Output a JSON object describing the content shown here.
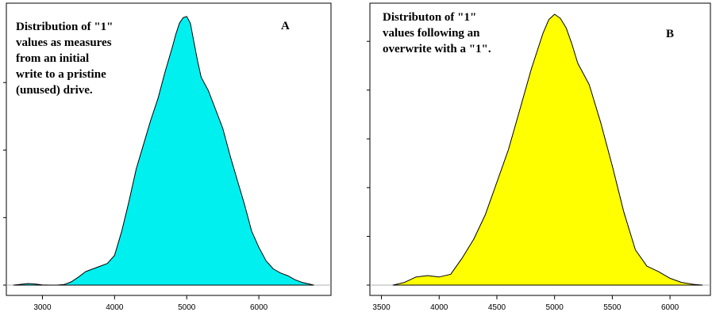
{
  "chart_data": [
    {
      "type": "area",
      "panel_letter": "A",
      "annotation_lines": [
        "Distribution of \"1\"",
        "values as measures",
        "from an initial",
        "write to a pristine",
        "(unused) drive."
      ],
      "fill_color": "#00f0f0",
      "xlim": [
        2500,
        7000
      ],
      "ylim": [
        0,
        1.0
      ],
      "x_ticks": [
        3000,
        4000,
        5000,
        6000
      ],
      "x_tick_labels": [
        "3000",
        "4000",
        "5000",
        "6000"
      ],
      "y_ticks": [
        0,
        0.25,
        0.5,
        0.75
      ],
      "series": [
        {
          "x": [
            2600,
            2700,
            2800,
            2900,
            3000,
            3100,
            3200,
            3300,
            3400,
            3500,
            3600,
            3700,
            3800,
            3900,
            4000,
            4100,
            4200,
            4300,
            4400,
            4500,
            4600,
            4700,
            4800,
            4850,
            4900,
            4950,
            5000,
            5050,
            5100,
            5150,
            5200,
            5300,
            5400,
            5500,
            5600,
            5700,
            5800,
            5900,
            6000,
            6100,
            6200,
            6300,
            6400,
            6500,
            6600,
            6700,
            6760
          ],
          "y": [
            0.0,
            0.003,
            0.006,
            0.004,
            0.001,
            0.0,
            0.0,
            0.002,
            0.012,
            0.03,
            0.05,
            0.06,
            0.07,
            0.08,
            0.11,
            0.2,
            0.31,
            0.43,
            0.52,
            0.61,
            0.69,
            0.79,
            0.88,
            0.93,
            0.97,
            0.99,
            0.995,
            0.97,
            0.9,
            0.83,
            0.77,
            0.72,
            0.65,
            0.58,
            0.48,
            0.39,
            0.3,
            0.2,
            0.14,
            0.09,
            0.06,
            0.045,
            0.035,
            0.02,
            0.01,
            0.004,
            0.0
          ]
        }
      ]
    },
    {
      "type": "area",
      "panel_letter": "B",
      "annotation_lines": [
        "Distributon of \"1\"",
        "values following an",
        "overwrite with a \"1\"."
      ],
      "fill_color": "#ffff00",
      "xlim": [
        3400,
        6350
      ],
      "ylim": [
        0,
        1.0
      ],
      "x_ticks": [
        3500,
        4000,
        4500,
        5000,
        5500,
        6000
      ],
      "x_tick_labels": [
        "3500",
        "4000",
        "4500",
        "5000",
        "5500",
        "6000"
      ],
      "y_ticks": [
        0,
        0.18,
        0.36,
        0.54,
        0.72,
        0.9
      ],
      "series": [
        {
          "x": [
            3600,
            3700,
            3800,
            3900,
            4000,
            4100,
            4200,
            4300,
            4400,
            4500,
            4600,
            4700,
            4800,
            4900,
            4950,
            5000,
            5050,
            5100,
            5150,
            5200,
            5300,
            5400,
            5500,
            5600,
            5700,
            5800,
            5900,
            6000,
            6100,
            6200,
            6280
          ],
          "y": [
            0.0,
            0.01,
            0.03,
            0.035,
            0.03,
            0.04,
            0.1,
            0.17,
            0.26,
            0.38,
            0.5,
            0.65,
            0.8,
            0.93,
            0.98,
            1.0,
            0.985,
            0.95,
            0.89,
            0.82,
            0.74,
            0.6,
            0.44,
            0.27,
            0.13,
            0.07,
            0.05,
            0.025,
            0.01,
            0.003,
            0.0
          ]
        }
      ]
    }
  ]
}
